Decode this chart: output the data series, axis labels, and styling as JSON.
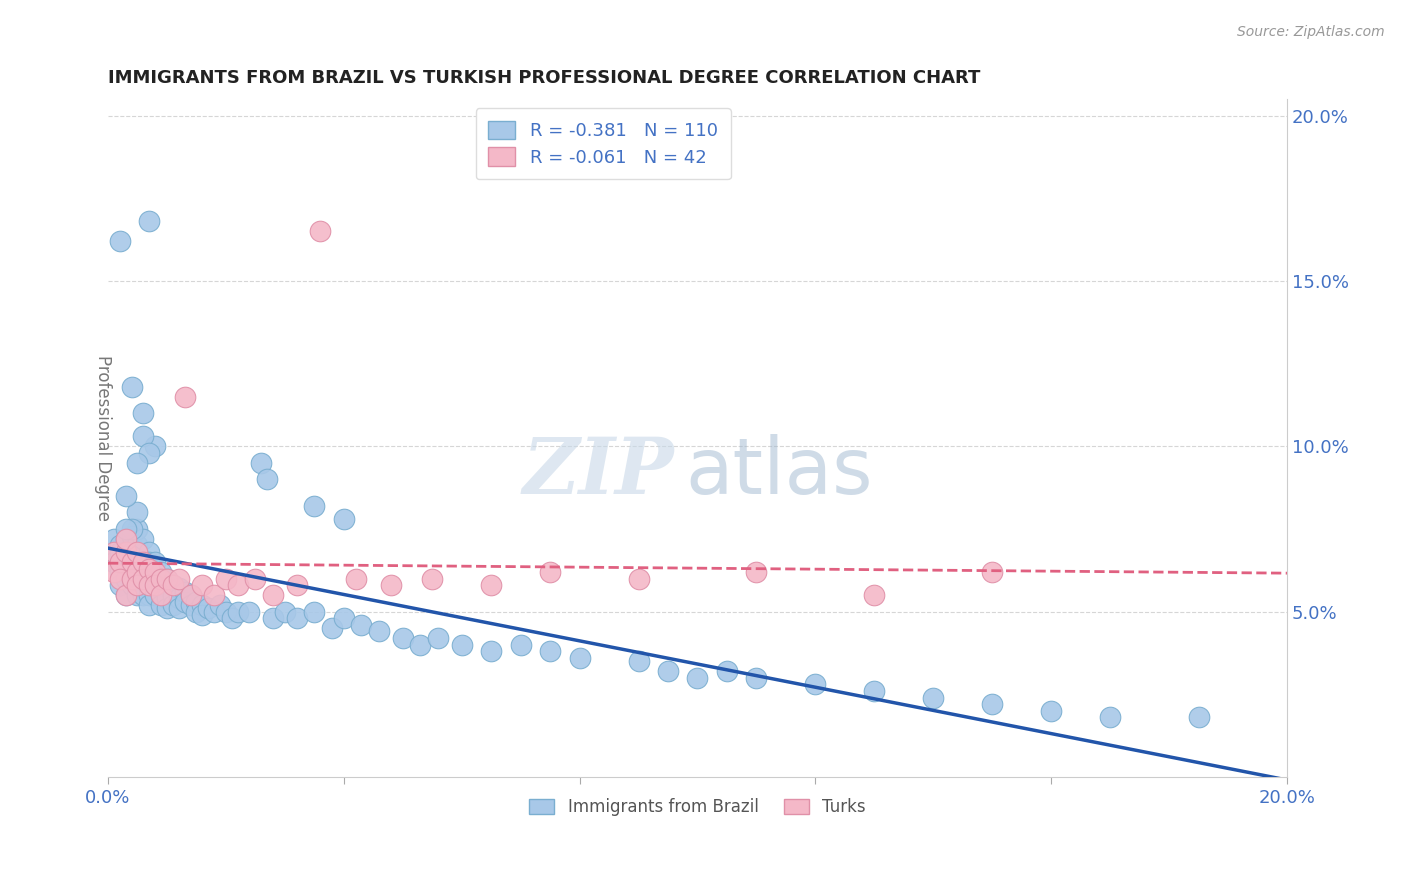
{
  "title": "IMMIGRANTS FROM BRAZIL VS TURKISH PROFESSIONAL DEGREE CORRELATION CHART",
  "source": "Source: ZipAtlas.com",
  "ylabel": "Professional Degree",
  "legend_brazil": "Immigrants from Brazil",
  "legend_turks": "Turks",
  "brazil_R": -0.381,
  "brazil_N": 110,
  "turks_R": -0.061,
  "turks_N": 42,
  "xlim": [
    0.0,
    0.2
  ],
  "ylim": [
    0.0,
    0.205
  ],
  "yticks": [
    0.05,
    0.1,
    0.15,
    0.2
  ],
  "ytick_labels": [
    "5.0%",
    "10.0%",
    "15.0%",
    "20.0%"
  ],
  "brazil_color": "#a8c8e8",
  "brazil_edge": "#7aaed0",
  "turks_color": "#f4b8c8",
  "turks_edge": "#e090a8",
  "brazil_line_color": "#2255aa",
  "turks_line_color": "#e06080",
  "watermark_zip": "ZIP",
  "watermark_atlas": "atlas",
  "background_color": "#ffffff",
  "brazil_x": [
    0.001,
    0.001,
    0.001,
    0.002,
    0.002,
    0.002,
    0.002,
    0.003,
    0.003,
    0.003,
    0.003,
    0.003,
    0.004,
    0.004,
    0.004,
    0.004,
    0.005,
    0.005,
    0.005,
    0.005,
    0.005,
    0.005,
    0.006,
    0.006,
    0.006,
    0.006,
    0.006,
    0.007,
    0.007,
    0.007,
    0.007,
    0.007,
    0.007,
    0.008,
    0.008,
    0.008,
    0.008,
    0.009,
    0.009,
    0.009,
    0.009,
    0.01,
    0.01,
    0.01,
    0.01,
    0.011,
    0.011,
    0.011,
    0.012,
    0.012,
    0.012,
    0.013,
    0.013,
    0.014,
    0.014,
    0.015,
    0.015,
    0.016,
    0.016,
    0.017,
    0.018,
    0.019,
    0.02,
    0.021,
    0.022,
    0.024,
    0.026,
    0.028,
    0.03,
    0.032,
    0.035,
    0.038,
    0.04,
    0.043,
    0.046,
    0.05,
    0.053,
    0.056,
    0.06,
    0.065,
    0.07,
    0.075,
    0.08,
    0.09,
    0.095,
    0.1,
    0.105,
    0.11,
    0.12,
    0.13,
    0.14,
    0.15,
    0.16,
    0.17,
    0.027,
    0.035,
    0.04,
    0.008,
    0.006,
    0.007,
    0.005,
    0.006,
    0.004,
    0.003,
    0.005,
    0.007,
    0.004,
    0.003,
    0.002,
    0.185
  ],
  "brazil_y": [
    0.068,
    0.072,
    0.065,
    0.07,
    0.068,
    0.062,
    0.058,
    0.072,
    0.065,
    0.06,
    0.055,
    0.068,
    0.073,
    0.068,
    0.062,
    0.058,
    0.07,
    0.065,
    0.06,
    0.055,
    0.075,
    0.068,
    0.072,
    0.065,
    0.062,
    0.058,
    0.055,
    0.068,
    0.065,
    0.06,
    0.057,
    0.055,
    0.052,
    0.065,
    0.062,
    0.058,
    0.055,
    0.062,
    0.058,
    0.055,
    0.052,
    0.06,
    0.057,
    0.054,
    0.051,
    0.058,
    0.055,
    0.052,
    0.057,
    0.054,
    0.051,
    0.056,
    0.053,
    0.055,
    0.052,
    0.053,
    0.05,
    0.052,
    0.049,
    0.051,
    0.05,
    0.052,
    0.05,
    0.048,
    0.05,
    0.05,
    0.095,
    0.048,
    0.05,
    0.048,
    0.05,
    0.045,
    0.048,
    0.046,
    0.044,
    0.042,
    0.04,
    0.042,
    0.04,
    0.038,
    0.04,
    0.038,
    0.036,
    0.035,
    0.032,
    0.03,
    0.032,
    0.03,
    0.028,
    0.026,
    0.024,
    0.022,
    0.02,
    0.018,
    0.09,
    0.082,
    0.078,
    0.1,
    0.103,
    0.098,
    0.08,
    0.11,
    0.075,
    0.085,
    0.095,
    0.168,
    0.118,
    0.075,
    0.162,
    0.018
  ],
  "turks_x": [
    0.001,
    0.001,
    0.002,
    0.002,
    0.003,
    0.003,
    0.003,
    0.004,
    0.004,
    0.005,
    0.005,
    0.005,
    0.006,
    0.006,
    0.007,
    0.007,
    0.008,
    0.008,
    0.009,
    0.009,
    0.01,
    0.011,
    0.012,
    0.013,
    0.014,
    0.016,
    0.018,
    0.02,
    0.022,
    0.025,
    0.028,
    0.032,
    0.036,
    0.042,
    0.048,
    0.055,
    0.065,
    0.075,
    0.09,
    0.11,
    0.13,
    0.15
  ],
  "turks_y": [
    0.068,
    0.062,
    0.065,
    0.06,
    0.068,
    0.072,
    0.055,
    0.065,
    0.06,
    0.068,
    0.062,
    0.058,
    0.065,
    0.06,
    0.063,
    0.058,
    0.062,
    0.058,
    0.06,
    0.055,
    0.06,
    0.058,
    0.06,
    0.115,
    0.055,
    0.058,
    0.055,
    0.06,
    0.058,
    0.06,
    0.055,
    0.058,
    0.165,
    0.06,
    0.058,
    0.06,
    0.058,
    0.062,
    0.06,
    0.062,
    0.055,
    0.062
  ]
}
